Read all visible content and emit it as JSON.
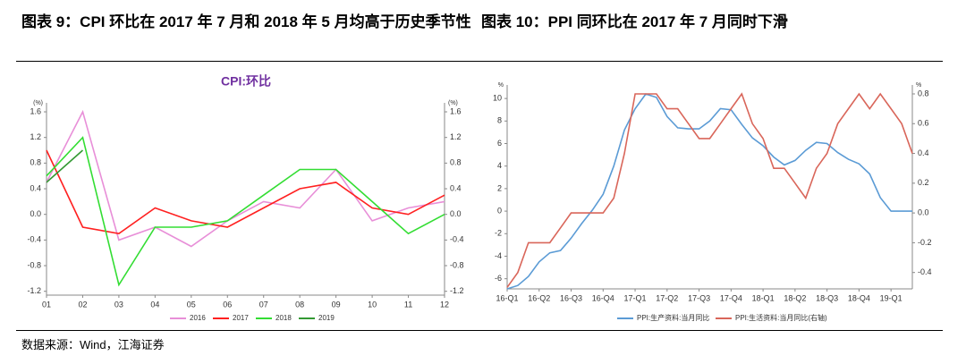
{
  "titles": [
    "图表 9：CPI 环比在 2017 年 7 月和 2018 年 5 月均高于历史季节性",
    "图表 10：PPI 同环比在 2017 年 7 月同时下滑"
  ],
  "source": "数据来源：Wind，江海证券",
  "chart_data": [
    {
      "type": "line",
      "title": "CPI:环比",
      "y_unit": "(%)",
      "y2_unit": "(%)",
      "categories": [
        "01",
        "02",
        "03",
        "04",
        "05",
        "06",
        "07",
        "08",
        "09",
        "10",
        "11",
        "12"
      ],
      "series": [
        {
          "name": "2016",
          "color": "#e88fd8",
          "values": [
            0.5,
            1.6,
            -0.4,
            -0.2,
            -0.5,
            -0.1,
            0.2,
            0.1,
            0.7,
            -0.1,
            0.1,
            0.2
          ]
        },
        {
          "name": "2017",
          "color": "#ff2020",
          "values": [
            1.0,
            -0.2,
            -0.3,
            0.1,
            -0.1,
            -0.2,
            0.1,
            0.4,
            0.5,
            0.1,
            0.0,
            0.3
          ]
        },
        {
          "name": "2018",
          "color": "#33dd33",
          "values": [
            0.6,
            1.2,
            -1.1,
            -0.2,
            -0.2,
            -0.1,
            0.3,
            0.7,
            0.7,
            0.2,
            -0.3,
            0.0
          ]
        },
        {
          "name": "2019",
          "color": "#339933",
          "values": [
            0.5,
            1.0,
            null,
            null,
            null,
            null,
            null,
            null,
            null,
            null,
            null,
            null
          ]
        }
      ],
      "ylim": [
        -1.26,
        1.74
      ],
      "yticks": [
        -1.2,
        -0.8,
        -0.4,
        {
          "value": 0,
          "label": "0.0"
        },
        0.4,
        0.8,
        1.2,
        1.6
      ],
      "y2lim": [
        -1.26,
        1.74
      ],
      "y2ticks": [
        -1.2,
        -0.8,
        -0.4,
        {
          "value": 0,
          "label": "0.0"
        },
        0.4,
        0.8,
        1.2,
        1.6
      ]
    },
    {
      "type": "line",
      "y_unit": "%",
      "y2_unit": "%",
      "categories": [
        "16-Q1",
        null,
        null,
        "16-Q2",
        null,
        null,
        "16-Q3",
        null,
        null,
        "16-Q4",
        null,
        null,
        "17-Q1",
        null,
        null,
        "17-Q2",
        null,
        null,
        "17-Q3",
        null,
        null,
        "17-Q4",
        null,
        null,
        "18-Q1",
        null,
        null,
        "18-Q2",
        null,
        null,
        "18-Q3",
        null,
        null,
        "18-Q4",
        null,
        null,
        "19-Q1",
        null,
        null
      ],
      "series": [
        {
          "name": "PPI:生产资料:当月同比",
          "color": "#5b9bd5",
          "values": [
            -6.9,
            -6.6,
            -5.8,
            -4.5,
            -3.7,
            -3.5,
            -2.4,
            -1.1,
            0.1,
            1.5,
            4.0,
            7.2,
            9.1,
            10.4,
            10.1,
            8.4,
            7.4,
            7.3,
            7.3,
            8.0,
            9.1,
            9.0,
            7.7,
            6.5,
            5.8,
            4.8,
            4.1,
            4.5,
            5.4,
            6.1,
            6.0,
            5.2,
            4.6,
            4.2,
            3.3,
            1.2,
            0.0,
            0.0,
            0.0
          ]
        },
        {
          "name": "PPI:生活资料:当月同比(右轴)",
          "color": "#d9665a",
          "axis": "y2",
          "values": [
            -0.5,
            -0.4,
            -0.2,
            -0.2,
            -0.2,
            -0.1,
            0.0,
            0.0,
            0.0,
            0.0,
            0.1,
            0.4,
            0.8,
            0.8,
            0.8,
            0.7,
            0.7,
            0.6,
            0.5,
            0.5,
            0.6,
            0.7,
            0.8,
            0.6,
            0.5,
            0.3,
            0.3,
            0.2,
            0.1,
            0.3,
            0.4,
            0.6,
            0.7,
            0.8,
            0.7,
            0.8,
            0.7,
            0.6,
            0.4
          ]
        }
      ],
      "ylim": [
        -6.9,
        11.2
      ],
      "yticks": [
        -6,
        -4,
        -2,
        0,
        2,
        4,
        6,
        8,
        10
      ],
      "y2lim": [
        -0.51,
        0.86
      ],
      "y2ticks": [
        -0.4,
        -0.2,
        {
          "value": 0,
          "label": "0.0"
        },
        0.2,
        0.4,
        0.6,
        0.8
      ]
    }
  ]
}
